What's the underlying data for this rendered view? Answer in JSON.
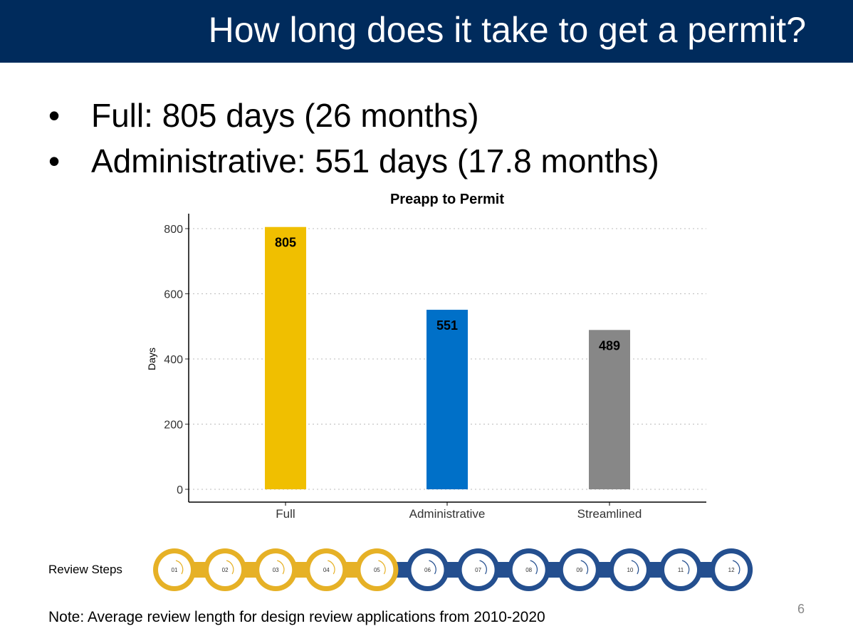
{
  "header": {
    "title": "How long does it take to get a permit?"
  },
  "bullets": [
    "Full: 805 days (26 months)",
    "Administrative: 551 days (17.8 months)"
  ],
  "chart_data": {
    "type": "bar",
    "title": "Preapp to Permit",
    "xlabel": "",
    "ylabel": "Days",
    "categories": [
      "Full",
      "Administrative",
      "Streamlined"
    ],
    "values": [
      805,
      551,
      489
    ],
    "colors": [
      "#f0bf00",
      "#0070c8",
      "#878787"
    ],
    "ylim": [
      0,
      800
    ],
    "yticks": [
      0,
      200,
      400,
      600,
      800
    ],
    "grid": "horizontal dotted"
  },
  "review_steps": {
    "label": "Review Steps",
    "steps": [
      "01",
      "02",
      "03",
      "04",
      "05",
      "06",
      "07",
      "08",
      "09",
      "10",
      "11",
      "12"
    ],
    "completed": 5,
    "colors": {
      "done": "#e6b126",
      "todo": "#244f8f"
    }
  },
  "note": "Note:  Average review length for design review applications from 2010-2020",
  "page_number": "6"
}
